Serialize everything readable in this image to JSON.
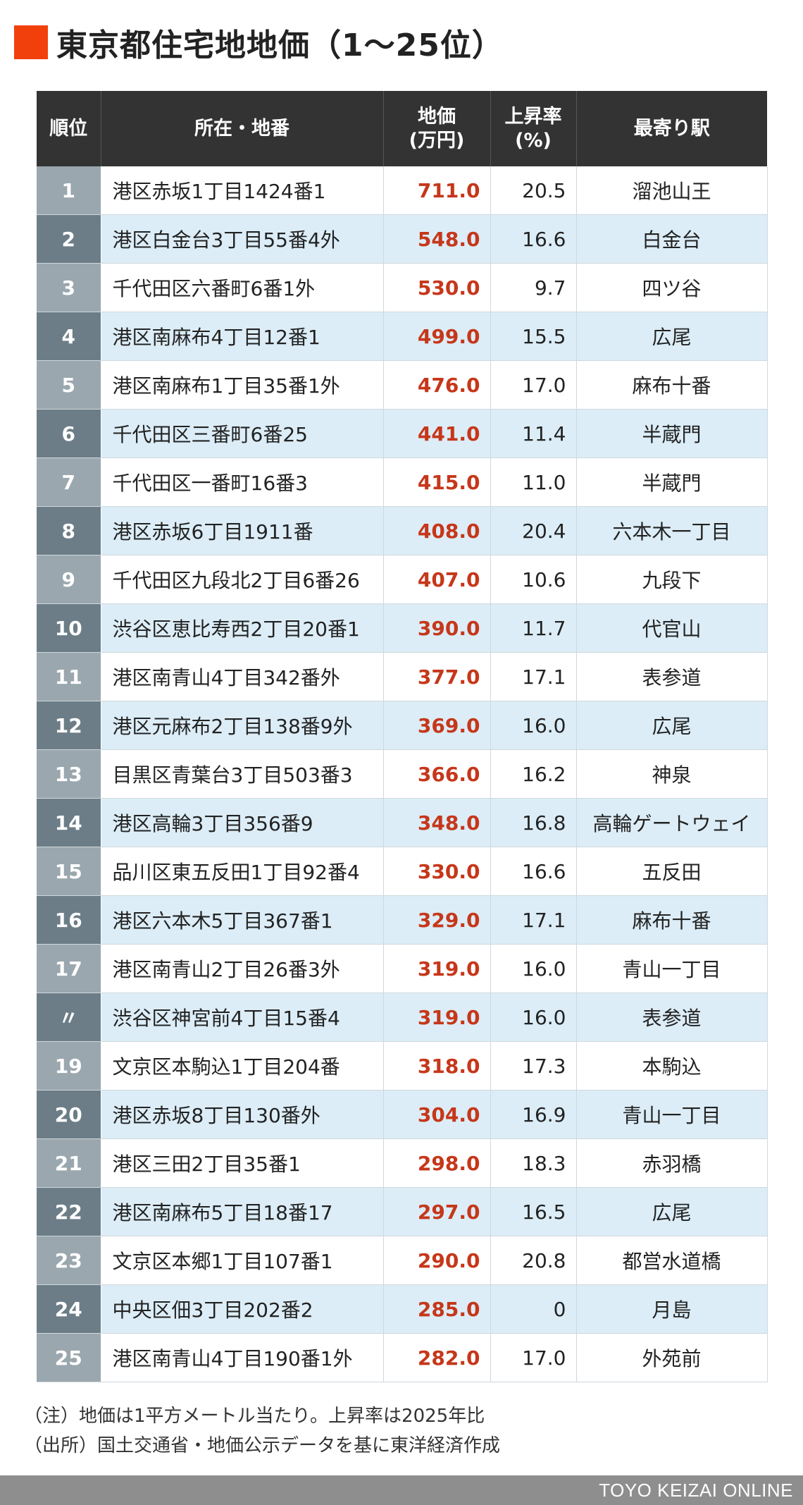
{
  "title": "東京都住宅地地価（1〜25位）",
  "colors": {
    "title_marker": "#f2400c",
    "header_bg": "#333333",
    "price_text": "#c6371a",
    "row_even_bg": "#dcedf7",
    "rank_odd_bg": "#9aa7ae",
    "rank_even_bg": "#6c7d87",
    "footer_bg": "#8e8e8e"
  },
  "table": {
    "headers": {
      "rank": "順位",
      "location": "所在・地番",
      "price_line1": "地価",
      "price_line2": "(万円)",
      "rate_line1": "上昇率",
      "rate_line2": "(%)",
      "station": "最寄り駅"
    },
    "rows": [
      {
        "rank": "1",
        "location": "港区赤坂1丁目1424番1",
        "price": "711.0",
        "rate": "20.5",
        "station": "溜池山王"
      },
      {
        "rank": "2",
        "location": "港区白金台3丁目55番4外",
        "price": "548.0",
        "rate": "16.6",
        "station": "白金台"
      },
      {
        "rank": "3",
        "location": "千代田区六番町6番1外",
        "price": "530.0",
        "rate": "9.7",
        "station": "四ツ谷"
      },
      {
        "rank": "4",
        "location": "港区南麻布4丁目12番1",
        "price": "499.0",
        "rate": "15.5",
        "station": "広尾"
      },
      {
        "rank": "5",
        "location": "港区南麻布1丁目35番1外",
        "price": "476.0",
        "rate": "17.0",
        "station": "麻布十番"
      },
      {
        "rank": "6",
        "location": "千代田区三番町6番25",
        "price": "441.0",
        "rate": "11.4",
        "station": "半蔵門"
      },
      {
        "rank": "7",
        "location": "千代田区一番町16番3",
        "price": "415.0",
        "rate": "11.0",
        "station": "半蔵門"
      },
      {
        "rank": "8",
        "location": "港区赤坂6丁目1911番",
        "price": "408.0",
        "rate": "20.4",
        "station": "六本木一丁目"
      },
      {
        "rank": "9",
        "location": "千代田区九段北2丁目6番26",
        "price": "407.0",
        "rate": "10.6",
        "station": "九段下"
      },
      {
        "rank": "10",
        "location": "渋谷区恵比寿西2丁目20番1",
        "price": "390.0",
        "rate": "11.7",
        "station": "代官山"
      },
      {
        "rank": "11",
        "location": "港区南青山4丁目342番外",
        "price": "377.0",
        "rate": "17.1",
        "station": "表参道"
      },
      {
        "rank": "12",
        "location": "港区元麻布2丁目138番9外",
        "price": "369.0",
        "rate": "16.0",
        "station": "広尾"
      },
      {
        "rank": "13",
        "location": "目黒区青葉台3丁目503番3",
        "price": "366.0",
        "rate": "16.2",
        "station": "神泉"
      },
      {
        "rank": "14",
        "location": "港区高輪3丁目356番9",
        "price": "348.0",
        "rate": "16.8",
        "station": "高輪ゲートウェイ"
      },
      {
        "rank": "15",
        "location": "品川区東五反田1丁目92番4",
        "price": "330.0",
        "rate": "16.6",
        "station": "五反田"
      },
      {
        "rank": "16",
        "location": "港区六本木5丁目367番1",
        "price": "329.0",
        "rate": "17.1",
        "station": "麻布十番"
      },
      {
        "rank": "17",
        "location": "港区南青山2丁目26番3外",
        "price": "319.0",
        "rate": "16.0",
        "station": "青山一丁目"
      },
      {
        "rank": "〃",
        "location": "渋谷区神宮前4丁目15番4",
        "price": "319.0",
        "rate": "16.0",
        "station": "表参道"
      },
      {
        "rank": "19",
        "location": "文京区本駒込1丁目204番",
        "price": "318.0",
        "rate": "17.3",
        "station": "本駒込"
      },
      {
        "rank": "20",
        "location": "港区赤坂8丁目130番外",
        "price": "304.0",
        "rate": "16.9",
        "station": "青山一丁目"
      },
      {
        "rank": "21",
        "location": "港区三田2丁目35番1",
        "price": "298.0",
        "rate": "18.3",
        "station": "赤羽橋"
      },
      {
        "rank": "22",
        "location": "港区南麻布5丁目18番17",
        "price": "297.0",
        "rate": "16.5",
        "station": "広尾"
      },
      {
        "rank": "23",
        "location": "文京区本郷1丁目107番1",
        "price": "290.0",
        "rate": "20.8",
        "station": "都営水道橋"
      },
      {
        "rank": "24",
        "location": "中央区佃3丁目202番2",
        "price": "285.0",
        "rate": "0",
        "station": "月島"
      },
      {
        "rank": "25",
        "location": "港区南青山4丁目190番1外",
        "price": "282.0",
        "rate": "17.0",
        "station": "外苑前"
      }
    ]
  },
  "notes": {
    "note": "（注）地価は1平方メートル当たり。上昇率は2025年比",
    "source": "（出所）国土交通省・地価公示データを基に東洋経済作成"
  },
  "footer": {
    "brand": "TOYO KEIZAI ONLINE"
  }
}
